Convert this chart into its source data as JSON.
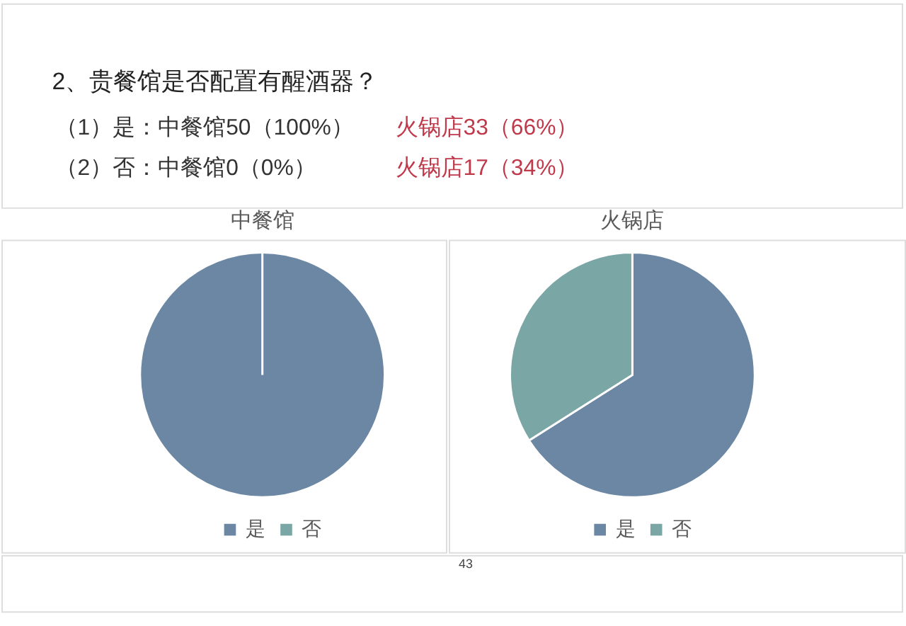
{
  "chart_data": [
    {
      "type": "other",
      "title": "2、贵餐馆是否配置有醒酒器？",
      "annotations": [
        "（1）是：中餐馆50（100%）",
        "火锅店33（66%）",
        "（2）否：中餐馆0（0%）",
        "火锅店17（34%）"
      ]
    },
    {
      "type": "pie",
      "title": "中餐馆",
      "categories": [
        "是",
        "否"
      ],
      "values": [
        100,
        0
      ],
      "colors": [
        "#6b87a3",
        "#7aa7a5"
      ],
      "legend": "bottom"
    },
    {
      "type": "pie",
      "title": "火锅店",
      "categories": [
        "是",
        "否"
      ],
      "values": [
        66,
        34
      ],
      "colors": [
        "#6b87a3",
        "#7aa7a5"
      ],
      "legend": "bottom"
    },
    {
      "type": "other",
      "annotations": [
        "43"
      ]
    }
  ]
}
